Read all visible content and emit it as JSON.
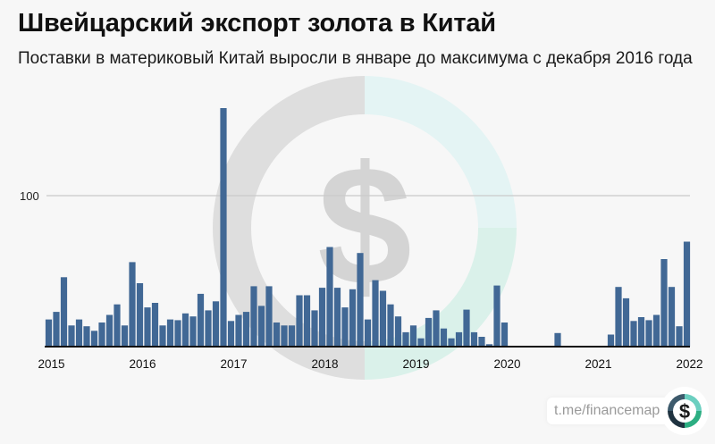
{
  "header": {
    "title": "Швейцарский экспорт золота в Китай",
    "subtitle": "Поставки в материковый Китай выросли в январе до максимума с декабря 2016 года"
  },
  "source": {
    "label": "t.me/financemap",
    "logo_icon": "dollar-ring-icon"
  },
  "colors": {
    "bar": "#416895",
    "background": "#f7f7f7",
    "gridline": "#c9c9c9",
    "logo_ring": [
      "#3d5a6c",
      "#6ccfc0",
      "#2cae82",
      "#1f3340"
    ]
  },
  "chart_data": {
    "type": "bar",
    "title": "Швейцарский экспорт золота в Китай",
    "subtitle": "Поставки в материковый Китай выросли в январе до максимума с декабря 2016 года",
    "xlabel": "",
    "ylabel": "",
    "ylim": [
      0,
      160
    ],
    "yticks": [
      100
    ],
    "ytick_labels": [
      "100"
    ],
    "grid": "horizontal line at 100",
    "legend": "none",
    "xtick_labels": [
      "2015",
      "2016",
      "2017",
      "2018",
      "2019",
      "2020",
      "2021",
      "2022"
    ],
    "categories": [
      "2015-01",
      "2015-02",
      "2015-03",
      "2015-04",
      "2015-05",
      "2015-06",
      "2015-07",
      "2015-08",
      "2015-09",
      "2015-10",
      "2015-11",
      "2015-12",
      "2016-01",
      "2016-02",
      "2016-03",
      "2016-04",
      "2016-05",
      "2016-06",
      "2016-07",
      "2016-08",
      "2016-09",
      "2016-10",
      "2016-11",
      "2016-12",
      "2017-01",
      "2017-02",
      "2017-03",
      "2017-04",
      "2017-05",
      "2017-06",
      "2017-07",
      "2017-08",
      "2017-09",
      "2017-10",
      "2017-11",
      "2017-12",
      "2018-01",
      "2018-02",
      "2018-03",
      "2018-04",
      "2018-05",
      "2018-06",
      "2018-07",
      "2018-08",
      "2018-09",
      "2018-10",
      "2018-11",
      "2018-12",
      "2019-01",
      "2019-02",
      "2019-03",
      "2019-04",
      "2019-05",
      "2019-06",
      "2019-07",
      "2019-08",
      "2019-09",
      "2019-10",
      "2019-11",
      "2019-12",
      "2020-01",
      "2020-02",
      "2020-03",
      "2020-04",
      "2020-05",
      "2020-06",
      "2020-07",
      "2020-08",
      "2020-09",
      "2020-10",
      "2020-11",
      "2020-12",
      "2021-01",
      "2021-02",
      "2021-03",
      "2021-04",
      "2021-05",
      "2021-06",
      "2021-07",
      "2021-08",
      "2021-09",
      "2021-10",
      "2021-11",
      "2021-12",
      "2022-01"
    ],
    "values": [
      18,
      23,
      46,
      14,
      18,
      13.5,
      10.5,
      16,
      21,
      28,
      14,
      56,
      42,
      26,
      29,
      14,
      18,
      17.5,
      22,
      20,
      35,
      24,
      30,
      158,
      17,
      21,
      23,
      40,
      27,
      40,
      16,
      14,
      14,
      34,
      34,
      24,
      39,
      66,
      39,
      26,
      38,
      62,
      18,
      44,
      37,
      28,
      20,
      9.5,
      14,
      5.5,
      19,
      24,
      12,
      5.5,
      9.5,
      24.5,
      9.5,
      6.5,
      1.6,
      40.5,
      16,
      0.6,
      0,
      0,
      0,
      0,
      0,
      9,
      0.6,
      0,
      0,
      0,
      0,
      0.6,
      8,
      39.5,
      32,
      17,
      19.5,
      17.5,
      21,
      58,
      39.5,
      13.5,
      69.5
    ]
  }
}
